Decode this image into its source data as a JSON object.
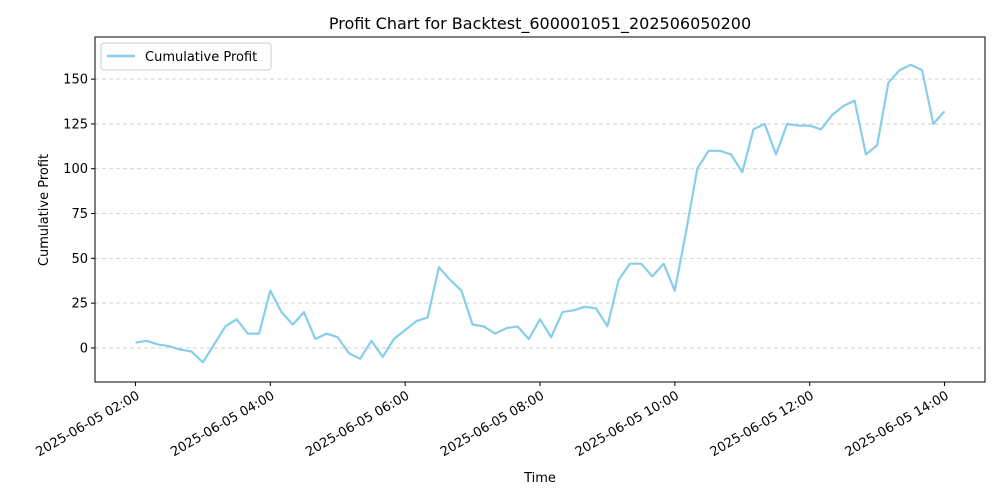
{
  "chart_data": {
    "type": "line",
    "title": "Profit Chart for Backtest_600001051_202506050200",
    "xlabel": "Time",
    "ylabel": "Cumulative Profit",
    "ylim": [
      -19,
      173.5
    ],
    "xlim": [
      "2025-06-05 01:24",
      "2025-06-05 14:36"
    ],
    "yticks": [
      0,
      25,
      50,
      75,
      100,
      125,
      150
    ],
    "xticks": [
      "2025-06-05 02:00",
      "2025-06-05 04:00",
      "2025-06-05 06:00",
      "2025-06-05 08:00",
      "2025-06-05 10:00",
      "2025-06-05 12:00",
      "2025-06-05 14:00"
    ],
    "grid": "y-dashed",
    "legend": "top-left",
    "series": [
      {
        "name": "Cumulative Profit",
        "color": "#87ceeb",
        "x": [
          "02:00",
          "02:10",
          "02:20",
          "02:30",
          "02:40",
          "02:50",
          "03:00",
          "03:10",
          "03:20",
          "03:30",
          "03:40",
          "03:50",
          "04:00",
          "04:10",
          "04:20",
          "04:30",
          "04:40",
          "04:50",
          "05:00",
          "05:10",
          "05:20",
          "05:30",
          "05:40",
          "05:50",
          "06:00",
          "06:10",
          "06:20",
          "06:30",
          "06:40",
          "06:50",
          "07:00",
          "07:10",
          "07:20",
          "07:30",
          "07:40",
          "07:50",
          "08:00",
          "08:10",
          "08:20",
          "08:30",
          "08:40",
          "08:50",
          "09:00",
          "09:10",
          "09:20",
          "09:30",
          "09:40",
          "09:50",
          "10:00",
          "10:10",
          "10:20",
          "10:30",
          "10:40",
          "10:50",
          "11:00",
          "11:10",
          "11:20",
          "11:30",
          "11:40",
          "11:50",
          "12:00",
          "12:10",
          "12:20",
          "12:30",
          "12:40",
          "12:50",
          "13:00",
          "13:10",
          "13:20",
          "13:30",
          "13:40",
          "13:50",
          "14:00"
        ],
        "values": [
          3,
          4,
          2,
          1,
          -1,
          -2,
          -8,
          2,
          12,
          16,
          8,
          8,
          32,
          20,
          13,
          20,
          5,
          8,
          6,
          -3,
          -6,
          4,
          -5,
          5,
          10,
          15,
          17,
          45,
          38,
          32,
          13,
          12,
          8,
          11,
          12,
          5,
          16,
          6,
          20,
          21,
          23,
          22,
          12,
          38,
          47,
          47,
          40,
          47,
          32,
          65,
          100,
          110,
          110,
          108,
          98,
          122,
          125,
          108,
          125,
          124,
          124,
          122,
          130,
          135,
          138,
          108,
          113,
          148,
          155,
          158,
          155,
          125,
          132
        ]
      }
    ]
  }
}
